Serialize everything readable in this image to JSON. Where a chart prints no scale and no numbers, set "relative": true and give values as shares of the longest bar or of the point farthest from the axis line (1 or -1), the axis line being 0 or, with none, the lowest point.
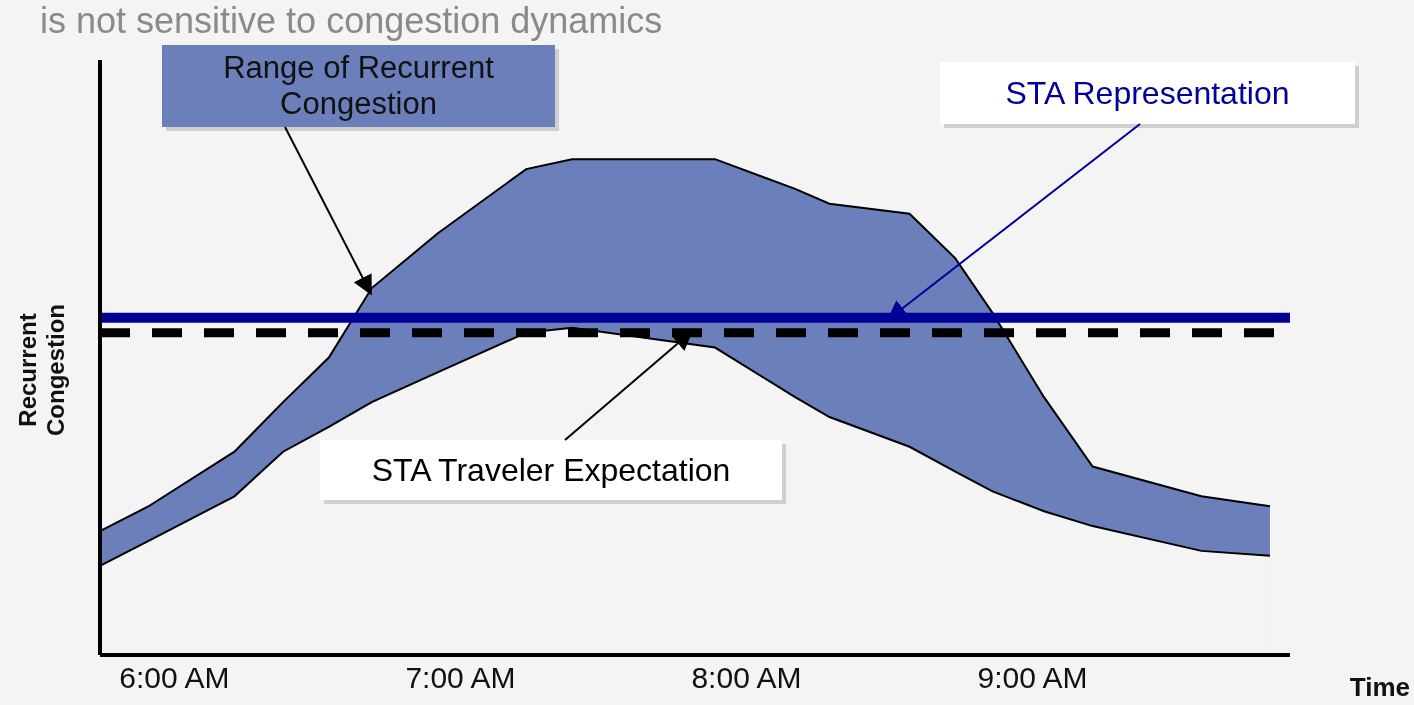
{
  "chart_data": {
    "type": "area",
    "relative": true,
    "title": "is not sensitive to congestion dynamics",
    "xlabel": "Time",
    "ylabel": "Recurrent Congestion",
    "x": [
      5.74,
      5.91,
      6.21,
      6.38,
      6.54,
      6.69,
      6.92,
      7.23,
      7.39,
      7.89,
      8.17,
      8.29,
      8.57,
      8.73,
      8.86,
      9.04,
      9.21,
      9.59,
      9.83
    ],
    "xlim": [
      5.74,
      9.9
    ],
    "xticks": [
      {
        "value": 6,
        "label": "6:00 AM"
      },
      {
        "value": 7,
        "label": "7:00 AM"
      },
      {
        "value": 8,
        "label": "8:00 AM"
      },
      {
        "value": 9,
        "label": "9:00 AM"
      }
    ],
    "series": [
      {
        "name": "Range of Recurrent Congestion",
        "color": "#6b7fba",
        "values": [
          0.25,
          0.3,
          0.41,
          0.51,
          0.6,
          0.74,
          0.85,
          0.98,
          1,
          1,
          0.94,
          0.91,
          0.89,
          0.8,
          0.69,
          0.52,
          0.38,
          0.32,
          0.3
        ]
      },
      {
        "color": "#f4f4f4",
        "values": [
          0.18,
          0.23,
          0.32,
          0.41,
          0.46,
          0.51,
          0.57,
          0.65,
          0.66,
          0.62,
          0.52,
          0.48,
          0.42,
          0.37,
          0.33,
          0.29,
          0.26,
          0.21,
          0.2
        ]
      }
    ],
    "ref_lines": [
      {
        "axis": "y",
        "value": 0.68,
        "label": "STA Representation",
        "color": "#000099",
        "line_style": "solid"
      },
      {
        "axis": "y",
        "value": 0.65,
        "label": "STA Traveler Expectation",
        "color": "#000000",
        "line_style": "dashed"
      }
    ],
    "grid": false
  }
}
